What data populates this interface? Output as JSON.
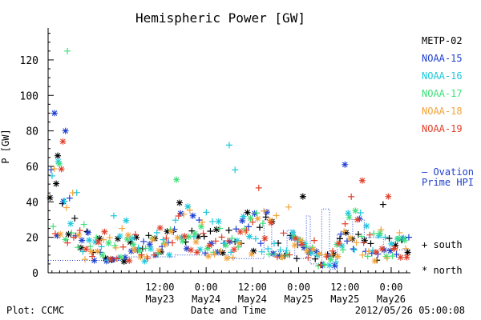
{
  "chart_data": {
    "type": "scatter",
    "title": "Hemispheric Power [GW]",
    "ylabel": "P [GW]",
    "xlabel": "Date and Time",
    "ylim": [
      0,
      138
    ],
    "xlim": [
      "2012-05-22 07:00",
      "2012-05-26 05:00"
    ],
    "y_ticks": [
      0,
      20,
      40,
      60,
      80,
      100,
      120
    ],
    "x_ticks": [
      {
        "t": "2012-05-23 12:00",
        "line1": "12:00",
        "line2": "May23"
      },
      {
        "t": "2012-05-24 00:00",
        "line1": "0:00",
        "line2": "May24"
      },
      {
        "t": "2012-05-24 12:00",
        "line1": "12:00",
        "line2": "May24"
      },
      {
        "t": "2012-05-25 00:00",
        "line1": "0:00",
        "line2": "May25"
      },
      {
        "t": "2012-05-25 12:00",
        "line1": "12:00",
        "line2": "May25"
      },
      {
        "t": "2012-05-26 00:00",
        "line1": "0:00",
        "line2": "May26"
      }
    ],
    "grid": false,
    "legend_position": "right",
    "series": [
      {
        "name": "METP-02",
        "color": "#000000"
      },
      {
        "name": "NOAA-15",
        "color": "#1e3fcf"
      },
      {
        "name": "NOAA-16",
        "color": "#1ec8dc"
      },
      {
        "name": "NOAA-17",
        "color": "#3fe07a"
      },
      {
        "name": "NOAA-18",
        "color": "#f2a33a"
      },
      {
        "name": "NOAA-19",
        "color": "#e0402a"
      }
    ],
    "ovation": {
      "name": "— Ovation Prime HPI",
      "color": "#1e3fcf"
    },
    "hemisphere_markers": [
      {
        "symbol": "+",
        "label": "south"
      },
      {
        "symbol": "*",
        "label": "north"
      }
    ]
  },
  "footer": {
    "plot_credit": "Plot: CCMC",
    "timestamp": "2012/05/26 05:00:08"
  }
}
